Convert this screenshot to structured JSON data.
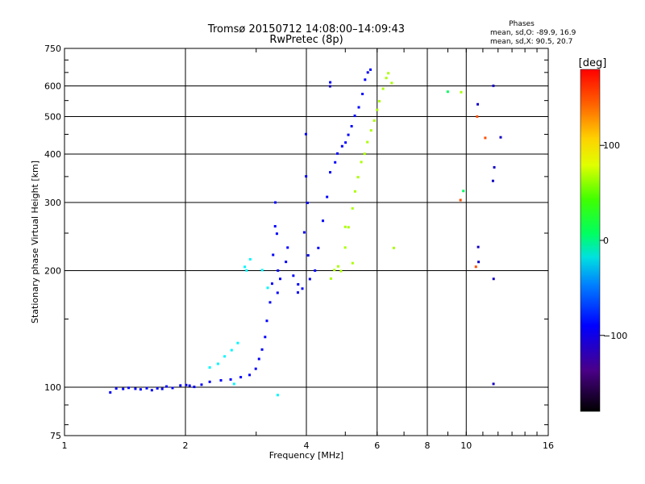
{
  "chart_data": {
    "type": "scatter",
    "title": "Tromsø 20150712 14:08:00–14:09:43",
    "subtitle": "RwPretec (8p)",
    "xlabel": "Frequency [MHz]",
    "ylabel": "Stationary phase Virtual Height [km]",
    "x_scale": "log",
    "y_scale": "log",
    "xlim": [
      1,
      16
    ],
    "ylim": [
      75,
      750
    ],
    "x_ticks": [
      1,
      2,
      4,
      6,
      8,
      10,
      16
    ],
    "x_tick_labels": [
      "1",
      "2",
      "4",
      "6",
      "8",
      "10",
      "16"
    ],
    "y_ticks": [
      75,
      100,
      200,
      300,
      400,
      500,
      600,
      750
    ],
    "y_tick_labels": [
      "75",
      "100",
      "200",
      "300",
      "400",
      "500",
      "600",
      "750"
    ],
    "x_gridlines": [
      2,
      4,
      6,
      8,
      10
    ],
    "y_gridlines": [
      100,
      200,
      300,
      400,
      500,
      600
    ],
    "grid": true,
    "phase_info": {
      "title": "Phases",
      "line_o": "mean, sd,O: -89.9, 16.9",
      "line_x": "mean, sd,X:  90.5, 20.7"
    },
    "colorbar": {
      "label": "[deg]",
      "range": [
        -180,
        180
      ],
      "ticks": [
        100,
        0,
        -100
      ],
      "tick_labels": [
        "100",
        "0",
        "−100"
      ]
    },
    "colors": {
      "o_trace": "#1e3fe0",
      "x_trace": "#e8d820"
    },
    "series": [
      {
        "name": "",
        "phase": -90,
        "points": [
          [
            1.3,
            97
          ],
          [
            1.35,
            99
          ],
          [
            1.4,
            99
          ],
          [
            1.45,
            100
          ],
          [
            1.5,
            99
          ],
          [
            1.55,
            99
          ],
          [
            1.6,
            99
          ],
          [
            1.65,
            98
          ],
          [
            1.7,
            99
          ],
          [
            1.75,
            99
          ],
          [
            1.8,
            100
          ],
          [
            1.85,
            100
          ],
          [
            1.95,
            101
          ],
          [
            2.0,
            101
          ],
          [
            2.05,
            101
          ],
          [
            2.1,
            100
          ],
          [
            2.2,
            102
          ],
          [
            2.3,
            103
          ],
          [
            2.45,
            104
          ],
          [
            2.6,
            105
          ],
          [
            2.75,
            106
          ],
          [
            2.9,
            108
          ],
          [
            3.0,
            112
          ],
          [
            3.05,
            118
          ],
          [
            3.1,
            125
          ],
          [
            3.15,
            135
          ],
          [
            3.2,
            148
          ],
          [
            3.25,
            165
          ],
          [
            3.3,
            185
          ],
          [
            3.3,
            220
          ],
          [
            3.33,
            260
          ],
          [
            3.35,
            300
          ],
          [
            3.38,
            250
          ],
          [
            3.4,
            200
          ],
          [
            3.45,
            190
          ],
          [
            3.55,
            210
          ],
          [
            3.6,
            230
          ],
          [
            3.7,
            195
          ],
          [
            3.8,
            185
          ],
          [
            3.9,
            180
          ],
          [
            3.95,
            250
          ],
          [
            4.0,
            350
          ],
          [
            4.0,
            450
          ],
          [
            4.02,
            300
          ],
          [
            4.05,
            220
          ],
          [
            4.1,
            190
          ],
          [
            4.2,
            200
          ],
          [
            4.3,
            230
          ],
          [
            4.4,
            270
          ],
          [
            4.5,
            310
          ],
          [
            4.6,
            360
          ],
          [
            4.7,
            380
          ],
          [
            4.8,
            400
          ],
          [
            4.9,
            420
          ],
          [
            5.0,
            430
          ],
          [
            5.1,
            450
          ],
          [
            5.2,
            470
          ],
          [
            5.3,
            500
          ],
          [
            5.4,
            530
          ],
          [
            5.5,
            570
          ],
          [
            5.6,
            620
          ],
          [
            5.7,
            650
          ],
          [
            5.8,
            660
          ],
          [
            3.4,
            175
          ],
          [
            3.8,
            175
          ],
          [
            4.6,
            610
          ]
        ]
      },
      {
        "name": "",
        "phase": 90,
        "points": [
          [
            4.6,
            190
          ],
          [
            4.7,
            200
          ],
          [
            4.8,
            205
          ],
          [
            4.9,
            200
          ],
          [
            5.0,
            230
          ],
          [
            5.1,
            260
          ],
          [
            5.2,
            290
          ],
          [
            5.3,
            320
          ],
          [
            5.4,
            350
          ],
          [
            5.5,
            380
          ],
          [
            5.6,
            400
          ],
          [
            5.7,
            430
          ],
          [
            5.8,
            460
          ],
          [
            5.9,
            490
          ],
          [
            6.0,
            520
          ],
          [
            6.1,
            550
          ],
          [
            6.2,
            590
          ],
          [
            6.3,
            630
          ],
          [
            6.4,
            650
          ],
          [
            6.5,
            610
          ],
          [
            5.0,
            260
          ],
          [
            5.2,
            210
          ],
          [
            6.6,
            230
          ],
          [
            9.7,
            580
          ]
        ]
      },
      {
        "name": "",
        "phase": -25,
        "points": [
          [
            2.3,
            112
          ],
          [
            2.4,
            115
          ],
          [
            2.5,
            120
          ],
          [
            2.6,
            125
          ],
          [
            2.7,
            130
          ],
          [
            2.8,
            205
          ],
          [
            2.85,
            200
          ],
          [
            2.9,
            215
          ],
          [
            3.2,
            180
          ],
          [
            3.1,
            200
          ],
          [
            2.65,
            102
          ],
          [
            3.4,
            95
          ]
        ]
      },
      {
        "name": "",
        "phase": 160,
        "points": [
          [
            10.6,
            500
          ],
          [
            11.2,
            440
          ],
          [
            10.6,
            205
          ],
          [
            9.7,
            305
          ]
        ]
      },
      {
        "name": "",
        "phase": -110,
        "points": [
          [
            10.7,
            540
          ],
          [
            10.7,
            230
          ],
          [
            10.7,
            210
          ],
          [
            11.7,
            600
          ],
          [
            11.7,
            370
          ],
          [
            11.7,
            340
          ],
          [
            11.7,
            190
          ],
          [
            11.7,
            102
          ],
          [
            12.2,
            440
          ],
          [
            4.6,
            600
          ]
        ]
      },
      {
        "name": "",
        "phase": 20,
        "points": [
          [
            9.0,
            580
          ],
          [
            9.8,
            320
          ]
        ]
      }
    ]
  }
}
